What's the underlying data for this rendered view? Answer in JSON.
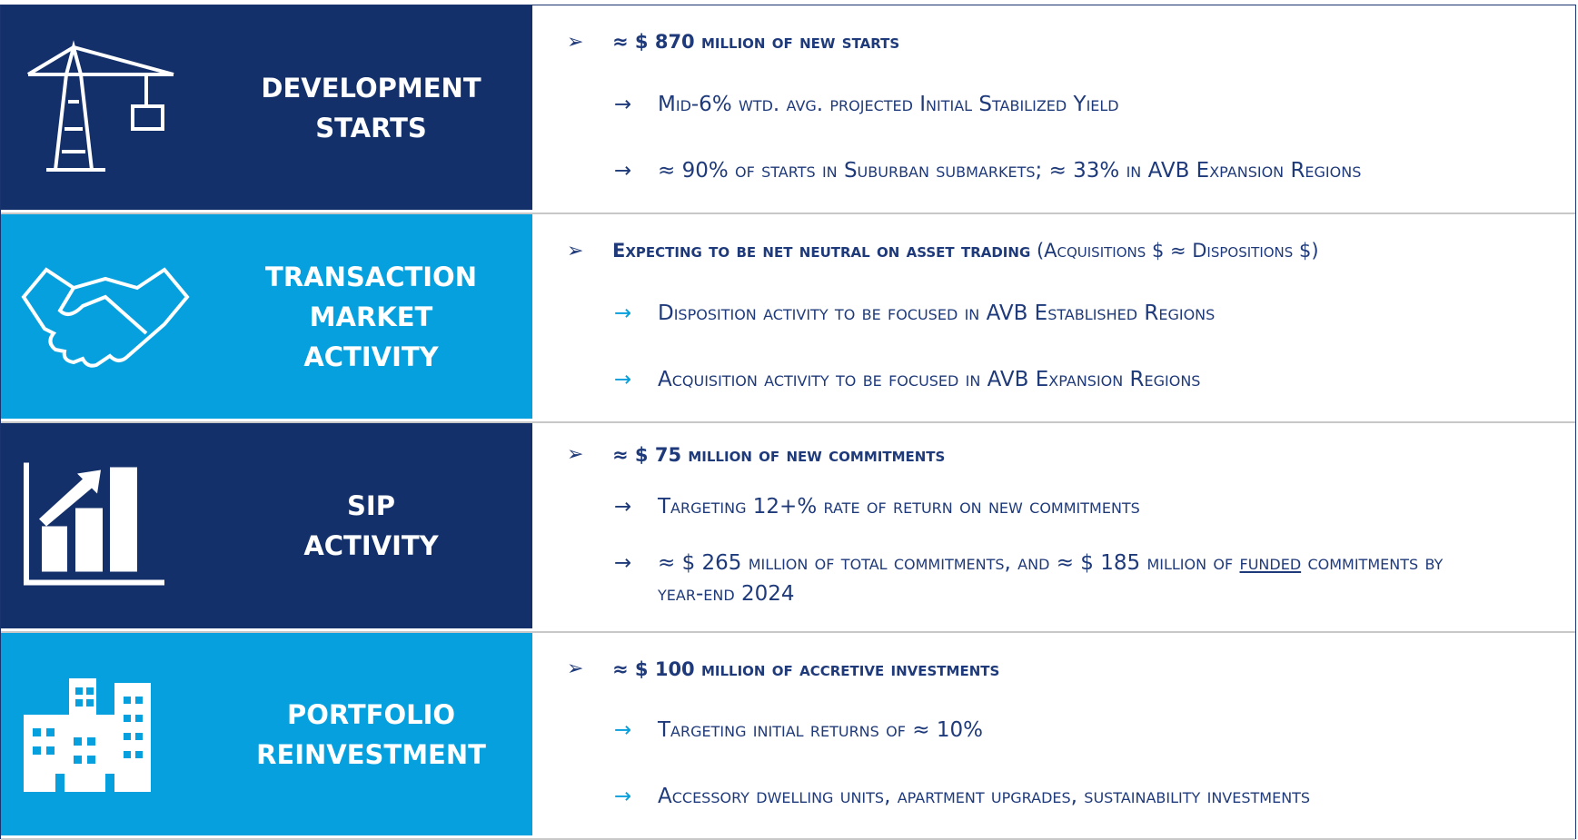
{
  "rows": [
    {
      "theme": "dark",
      "title": [
        "DEVELOPMENT",
        "STARTS"
      ],
      "bullet": [
        {
          "text": "≈ $ 870 million of new starts",
          "bold": true
        }
      ],
      "items": [
        [
          {
            "text": "Mid-6% wtd. avg. projected Initial Stabilized Yield"
          }
        ],
        [
          {
            "text": "≈ 90% of starts in Suburban submarkets; ≈ 33% in AVB Expansion Regions"
          }
        ]
      ]
    },
    {
      "theme": "light",
      "title": [
        "TRANSACTION",
        "MARKET",
        "ACTIVITY"
      ],
      "bullet": [
        {
          "text": "Expecting to be net neutral on asset trading",
          "bold": true
        },
        {
          "text": " (Acquisitions $ ≈ Dispositions $)"
        }
      ],
      "items": [
        [
          {
            "text": "Disposition activity to be focused in AVB Established Regions"
          }
        ],
        [
          {
            "text": "Acquisition activity to be focused in AVB Expansion Regions"
          }
        ]
      ]
    },
    {
      "theme": "dark",
      "title": [
        "SIP",
        "ACTIVITY"
      ],
      "bullet": [
        {
          "text": "≈ $ 75 million of new commitments",
          "bold": true
        }
      ],
      "items": [
        [
          {
            "text": "Targeting 12+% rate of return on new commitments"
          }
        ],
        [
          {
            "text": "≈ $ 265 million of total commitments, and ≈ $ 185 million of "
          },
          {
            "text": "funded",
            "underline": true
          },
          {
            "text": " commitments by year-end 2024"
          }
        ]
      ]
    },
    {
      "theme": "light",
      "title": [
        "PORTFOLIO",
        "REINVESTMENT"
      ],
      "bullet": [
        {
          "text": "≈ $ 100 million of accretive investments",
          "bold": true
        }
      ],
      "items": [
        [
          {
            "text": "Targeting initial returns of ≈ 10%"
          }
        ],
        [
          {
            "text": "Accessory dwelling units, apartment upgrades, sustainability investments"
          }
        ]
      ]
    }
  ]
}
